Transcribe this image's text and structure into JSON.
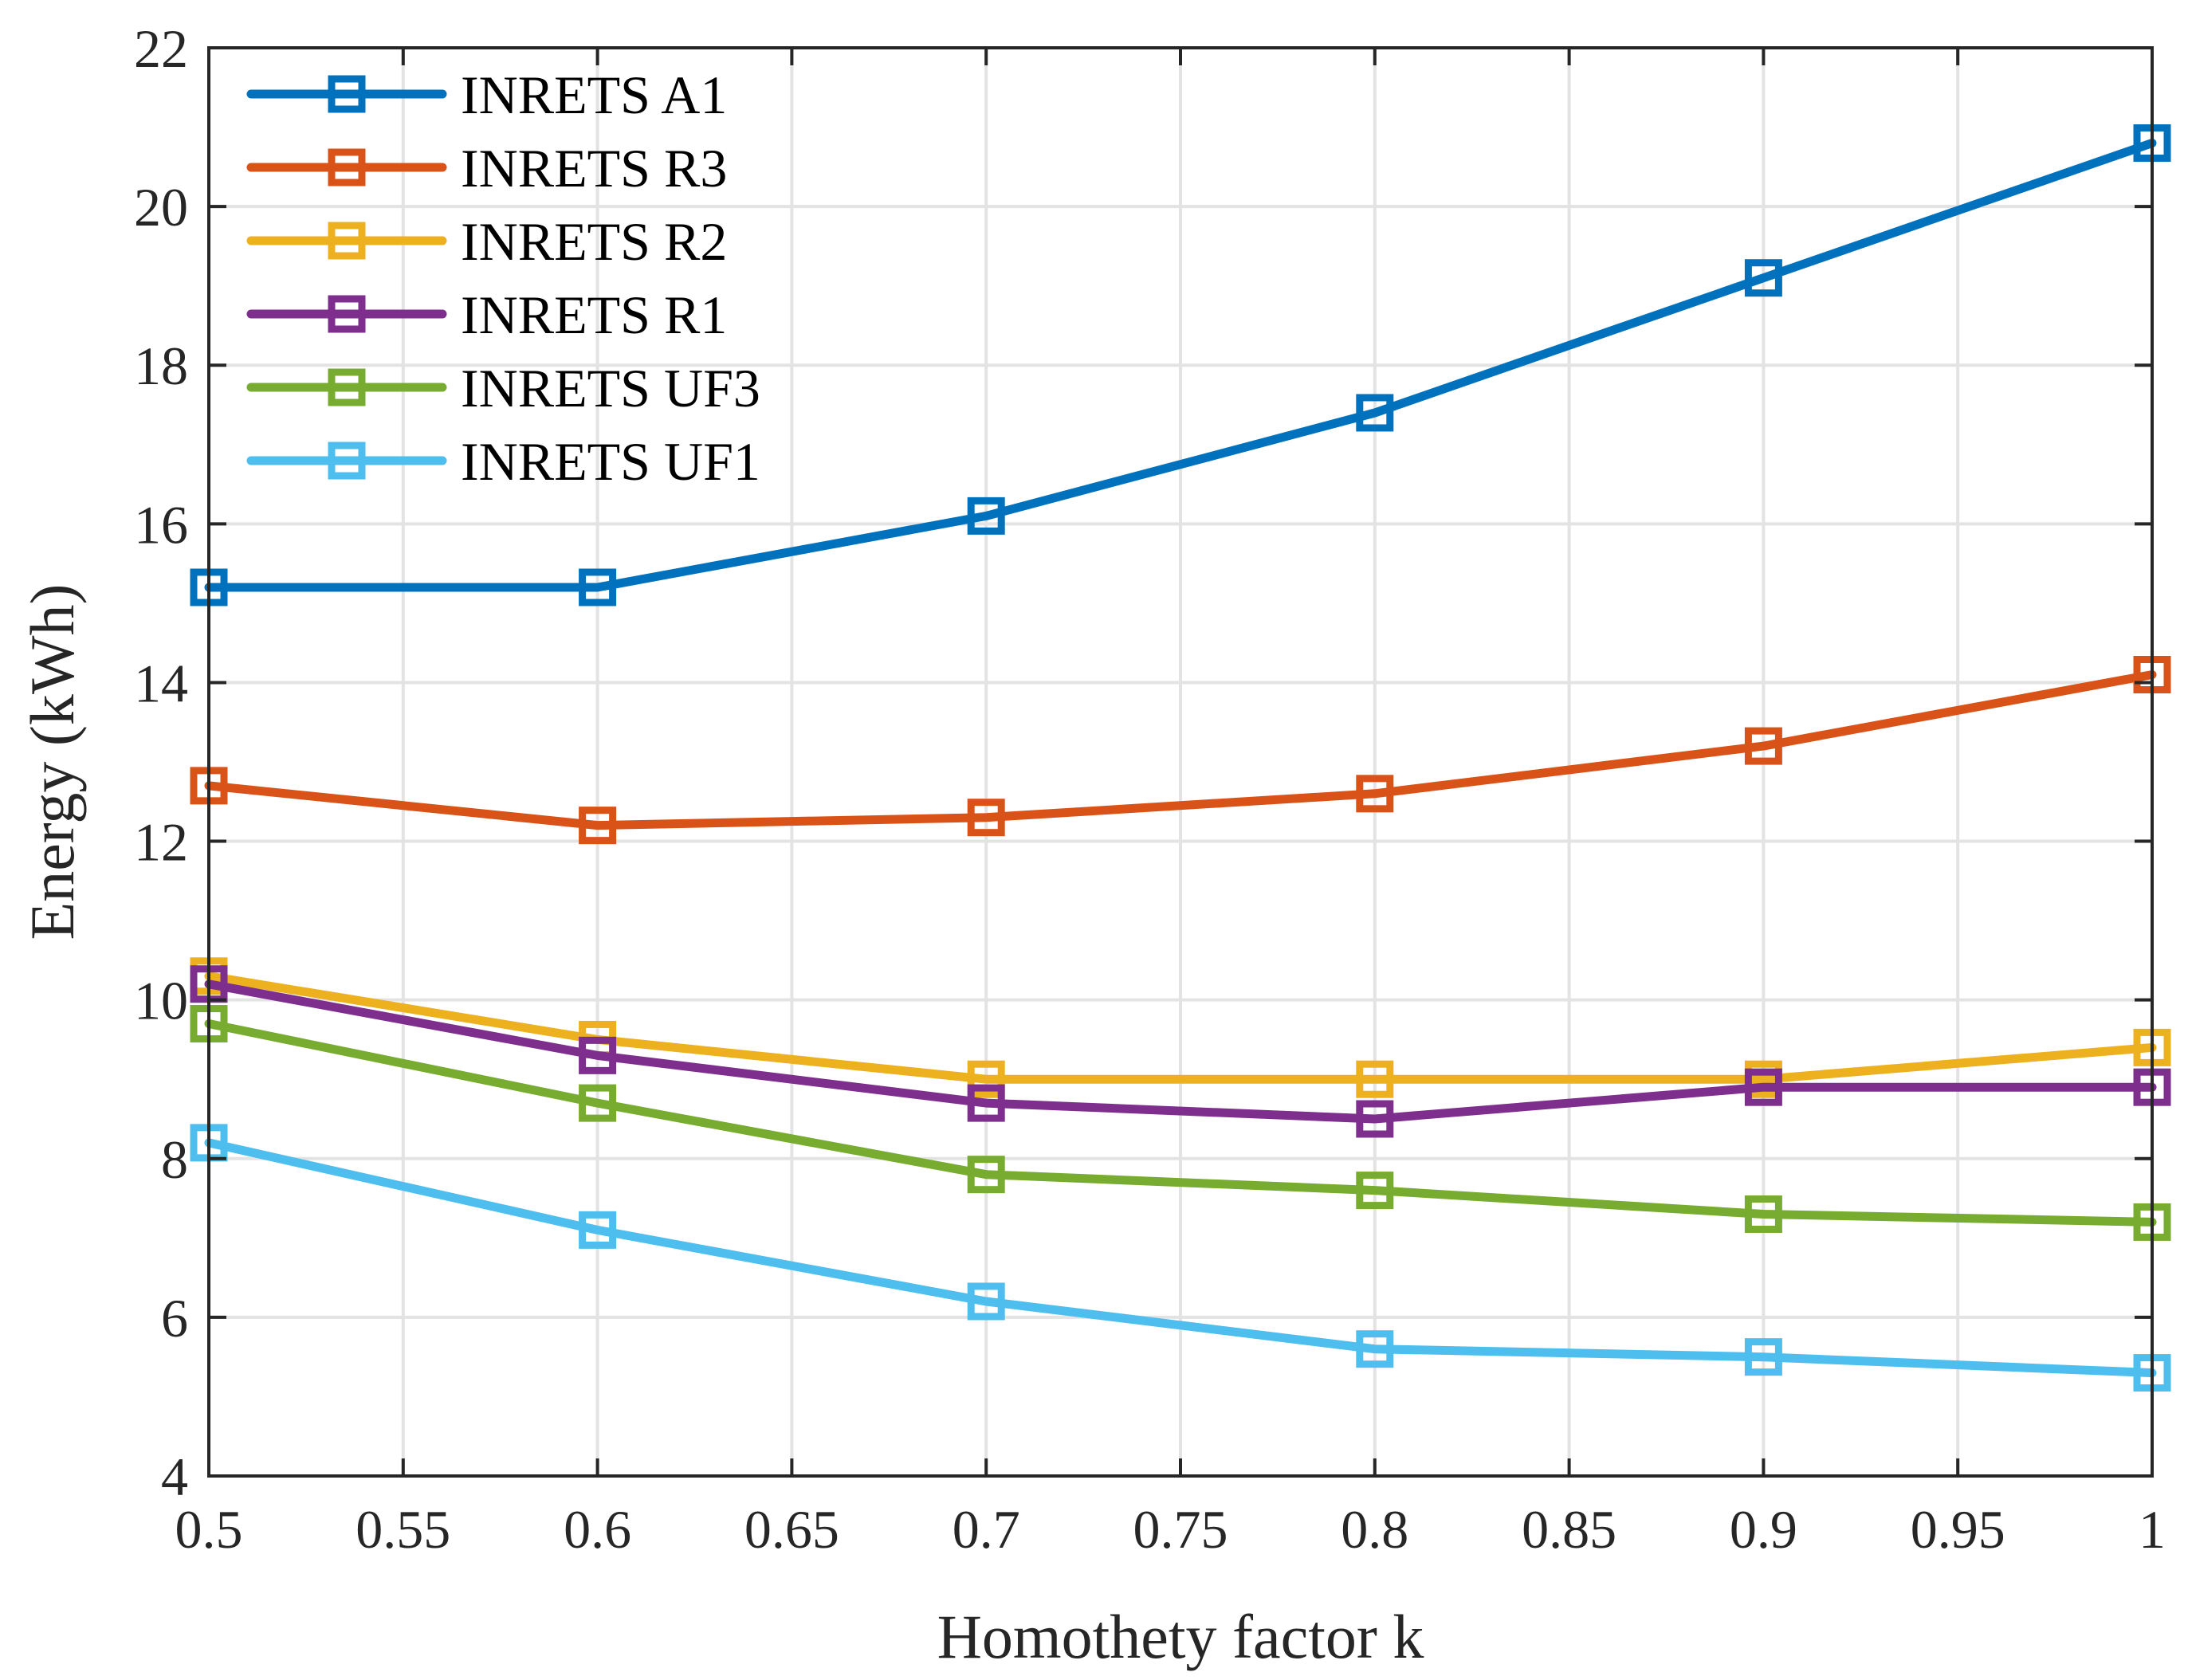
{
  "chart_data": {
    "type": "line",
    "title": "",
    "xlabel": "Homothety factor k",
    "ylabel": "Energy (kWh)",
    "xlim": [
      0.5,
      1
    ],
    "ylim": [
      4,
      22
    ],
    "xticks": [
      0.5,
      0.55,
      0.6,
      0.65,
      0.7,
      0.75,
      0.8,
      0.85,
      0.9,
      0.95,
      1
    ],
    "xtick_labels": [
      "0.5",
      "0.55",
      "0.6",
      "0.65",
      "0.7",
      "0.75",
      "0.8",
      "0.85",
      "0.9",
      "0.95",
      "1"
    ],
    "yticks": [
      4,
      6,
      8,
      10,
      12,
      14,
      16,
      18,
      20,
      22
    ],
    "ytick_labels": [
      "4",
      "6",
      "8",
      "10",
      "12",
      "14",
      "16",
      "18",
      "20",
      "22"
    ],
    "grid": true,
    "legend_position": "top-left",
    "marker": "square",
    "x": [
      0.5,
      0.6,
      0.7,
      0.8,
      0.9,
      1.0
    ],
    "series": [
      {
        "name": "INRETS A1",
        "color": "#0072BD",
        "values": [
          15.2,
          15.2,
          16.1,
          17.4,
          19.1,
          20.8
        ]
      },
      {
        "name": "INRETS R3",
        "color": "#D95319",
        "values": [
          12.7,
          12.2,
          12.3,
          12.6,
          13.2,
          14.1
        ]
      },
      {
        "name": "INRETS R2",
        "color": "#EDB120",
        "values": [
          10.3,
          9.5,
          9.0,
          9.0,
          9.0,
          9.4
        ]
      },
      {
        "name": "INRETS R1",
        "color": "#7E2F8E",
        "values": [
          10.2,
          9.3,
          8.7,
          8.5,
          8.9,
          8.9
        ]
      },
      {
        "name": "INRETS UF3",
        "color": "#77AC30",
        "values": [
          9.7,
          8.7,
          7.8,
          7.6,
          7.3,
          7.2
        ]
      },
      {
        "name": "INRETS UF1",
        "color": "#4DBEEE",
        "values": [
          8.2,
          7.1,
          6.2,
          5.6,
          5.5,
          5.3
        ]
      }
    ]
  }
}
